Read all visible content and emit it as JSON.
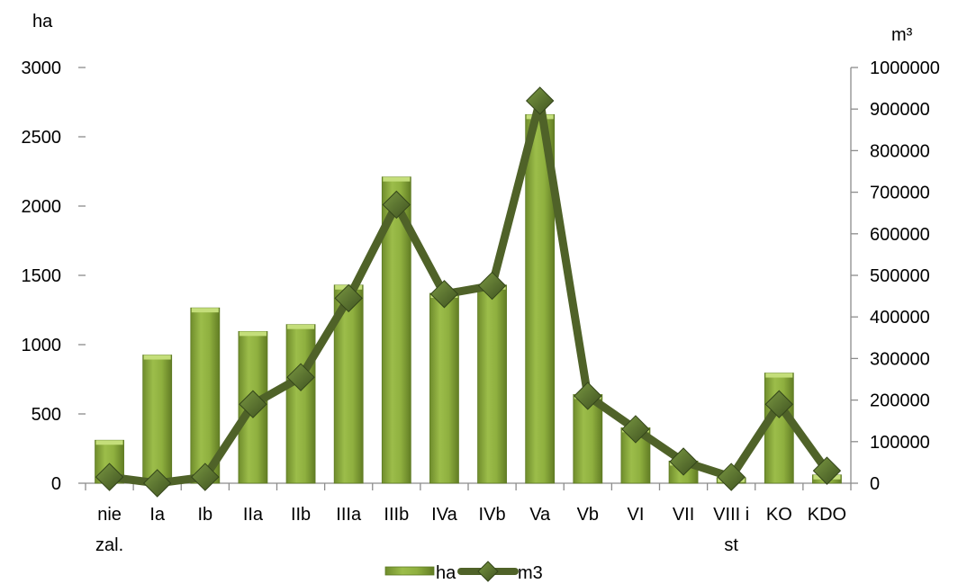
{
  "chart_data": {
    "type": "bar",
    "categories": [
      [
        "nie",
        "zal."
      ],
      [
        "Ia"
      ],
      [
        "Ib"
      ],
      [
        "IIa"
      ],
      [
        "IIb"
      ],
      [
        "IIIa"
      ],
      [
        "IIIb"
      ],
      [
        "IVa"
      ],
      [
        "IVb"
      ],
      [
        "Va"
      ],
      [
        "Vb"
      ],
      [
        "VI"
      ],
      [
        "VII"
      ],
      [
        "VIII i",
        "st"
      ],
      [
        "KO"
      ],
      [
        "KDO"
      ]
    ],
    "left_axis": {
      "label": "ha",
      "ylim": [
        0,
        3000
      ],
      "ticks": [
        0,
        500,
        1000,
        1500,
        2000,
        2500,
        3000
      ]
    },
    "right_axis": {
      "label": "m³",
      "ylim": [
        0,
        1000000
      ],
      "ticks": [
        0,
        100000,
        200000,
        300000,
        400000,
        500000,
        600000,
        700000,
        800000,
        900000,
        1000000
      ]
    },
    "series": [
      {
        "name": "ha",
        "type": "bar",
        "axis": "left",
        "values": [
          310,
          925,
          1265,
          1095,
          1145,
          1430,
          2210,
          1370,
          1430,
          2660,
          640,
          400,
          160,
          40,
          795,
          60
        ]
      },
      {
        "name": "m3",
        "type": "line",
        "axis": "right",
        "values": [
          15000,
          0,
          15000,
          190000,
          255000,
          445000,
          670000,
          455000,
          475000,
          920000,
          210000,
          130000,
          52000,
          15000,
          190000,
          30000
        ]
      }
    ],
    "legend": {
      "position": "bottom",
      "items": [
        "ha",
        "m3"
      ]
    },
    "colors": {
      "bar": "#8faf3e",
      "bar_top": "#c4de7a",
      "line": "#4f6228",
      "marker": "#5f7a2e"
    },
    "grid": false
  }
}
